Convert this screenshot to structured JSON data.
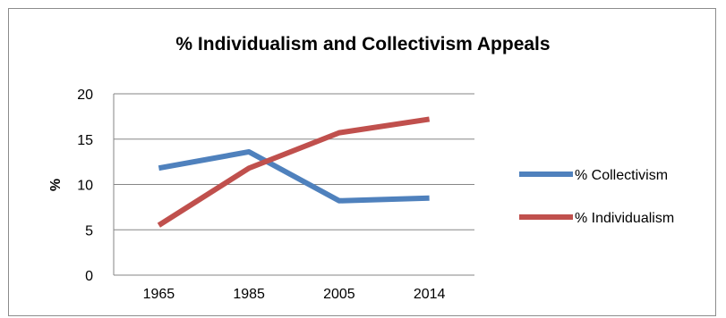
{
  "chart_data": {
    "type": "line",
    "title": "% Individualism and Collectivism Appeals",
    "xlabel": "",
    "ylabel": "%",
    "categories": [
      "1965",
      "1985",
      "2005",
      "2014"
    ],
    "ylim": [
      0,
      20
    ],
    "yticks": [
      "0",
      "5",
      "10",
      "15",
      "20"
    ],
    "grid": true,
    "legend_position": "right",
    "series": [
      {
        "name": "% Collectivism",
        "color": "#4f81bd",
        "values": [
          11.8,
          13.6,
          8.2,
          8.5
        ]
      },
      {
        "name": "% Individualism",
        "color": "#c0504d",
        "values": [
          5.5,
          11.8,
          15.7,
          17.2
        ]
      }
    ]
  }
}
